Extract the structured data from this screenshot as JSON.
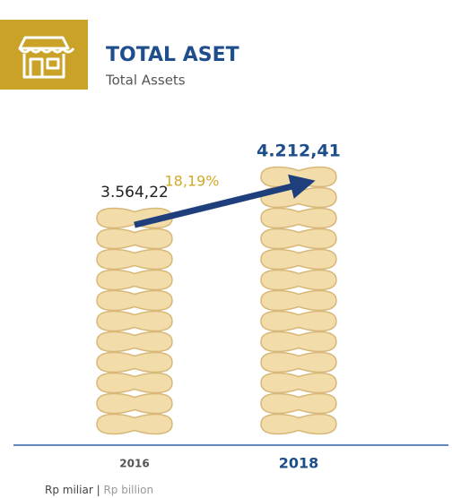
{
  "chart_data": {
    "type": "bar",
    "title": "TOTAL ASET",
    "subtitle": "Total Assets",
    "categories": [
      "2016",
      "2018"
    ],
    "values": [
      3564.22,
      4212.41
    ],
    "value_labels": [
      "3.564,22",
      "4.212,41"
    ],
    "color": "#f2dcaa",
    "growth": {
      "value": 18.19,
      "label": "18,19%"
    },
    "footer": {
      "left": "Rp miliar",
      "separator": "|",
      "right": "Rp billion"
    }
  }
}
